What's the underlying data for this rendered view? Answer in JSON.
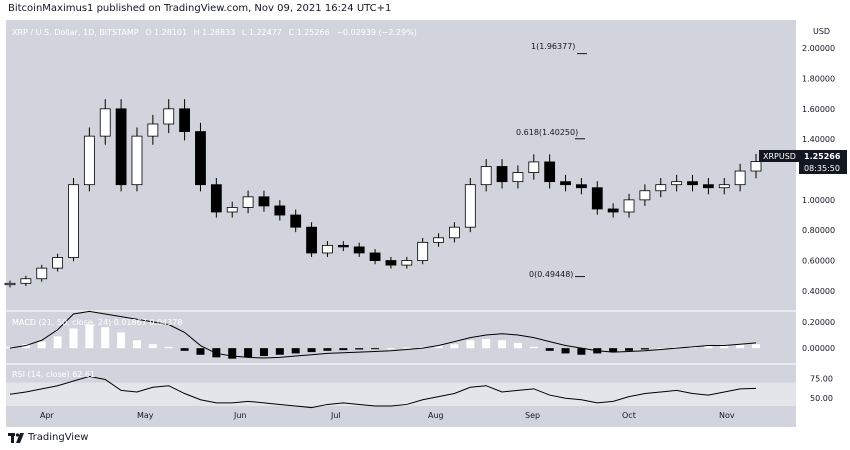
{
  "publish_line": "BitcoinMaximus1 published on TradingView.com, Nov 09, 2021 16:24 UTC+1",
  "header": {
    "symbol": "XRP / U.S. Dollar, 1D, BITSTAMP",
    "open": "O 1.28101",
    "high": "H 1.28833",
    "low": "L 1.22477",
    "close": "C 1.25266",
    "change": "−0.02939 (−2.29%)"
  },
  "currency": "USD",
  "price_tag": {
    "symbol": "XRPUSD",
    "price": "1.25266",
    "countdown": "08:35:50"
  },
  "fib_levels": [
    {
      "label": "1(1.96377)",
      "value": 1.96377
    },
    {
      "label": "0.618(1.40250)",
      "value": 1.4025
    },
    {
      "label": "0(0.49448)",
      "value": 0.49448
    }
  ],
  "macd_label": "MACD (21, 50, close, 24)  0.01867  0.04378",
  "rsi_label": "RSI (14, close)  62.61",
  "footer_brand": "TradingView",
  "colors": {
    "pane": "#d1d4dc",
    "candle": "#000000",
    "macd_pos": "#ffffff",
    "macd_neg": "#000000"
  },
  "chart_data": [
    {
      "type": "candlestick",
      "title": "XRP / U.S. Dollar, 1D, BITSTAMP",
      "xlabel": "",
      "ylabel": "USD",
      "x_ticks": [
        "Apr",
        "May",
        "Jun",
        "Jul",
        "Aug",
        "Sep",
        "Oct",
        "Nov"
      ],
      "y_ticks": [
        "2.00000",
        "1.80000",
        "1.60000",
        "1.40000",
        "1.20000",
        "1.00000",
        "0.80000",
        "0.60000",
        "0.40000"
      ],
      "ylim": [
        0.34,
        2.08
      ],
      "x": [
        "Mar 20",
        "Mar 25",
        "Mar 30",
        "Apr 4",
        "Apr 9",
        "Apr 14",
        "Apr 19",
        "Apr 24",
        "Apr 29",
        "May 4",
        "May 9",
        "May 14",
        "May 19",
        "May 24",
        "May 29",
        "Jun 3",
        "Jun 8",
        "Jun 13",
        "Jun 18",
        "Jun 23",
        "Jun 28",
        "Jul 3",
        "Jul 8",
        "Jul 13",
        "Jul 18",
        "Jul 23",
        "Jul 28",
        "Aug 2",
        "Aug 7",
        "Aug 12",
        "Aug 17",
        "Aug 22",
        "Aug 27",
        "Sep 1",
        "Sep 6",
        "Sep 11",
        "Sep 16",
        "Sep 21",
        "Sep 26",
        "Oct 1",
        "Oct 6",
        "Oct 11",
        "Oct 16",
        "Oct 21",
        "Oct 26",
        "Oct 31",
        "Nov 5",
        "Nov 9"
      ],
      "close": [
        0.45,
        0.48,
        0.55,
        0.62,
        1.1,
        1.42,
        1.6,
        1.1,
        1.42,
        1.5,
        1.6,
        1.45,
        1.1,
        0.92,
        0.95,
        1.02,
        0.96,
        0.9,
        0.82,
        0.65,
        0.7,
        0.69,
        0.65,
        0.6,
        0.57,
        0.6,
        0.72,
        0.75,
        0.82,
        1.1,
        1.22,
        1.12,
        1.18,
        1.25,
        1.12,
        1.1,
        1.08,
        0.94,
        0.92,
        1.0,
        1.06,
        1.1,
        1.12,
        1.1,
        1.08,
        1.1,
        1.19,
        1.25266
      ]
    },
    {
      "type": "bar",
      "title": "MACD (21, 50, close, 24)",
      "y_ticks": [
        "0.20000",
        "0.00000"
      ],
      "ylim": [
        -0.09,
        0.26
      ],
      "values": [
        0.01,
        0.03,
        0.05,
        0.09,
        0.15,
        0.18,
        0.16,
        0.12,
        0.06,
        0.03,
        0.01,
        -0.02,
        -0.05,
        -0.07,
        -0.08,
        -0.07,
        -0.06,
        -0.05,
        -0.04,
        -0.03,
        -0.02,
        -0.015,
        -0.01,
        -0.005,
        0.0,
        0.005,
        0.01,
        0.02,
        0.03,
        0.06,
        0.07,
        0.06,
        0.04,
        0.01,
        -0.02,
        -0.04,
        -0.05,
        -0.04,
        -0.03,
        -0.02,
        -0.01,
        0.0,
        0.01,
        0.015,
        0.02,
        0.025,
        0.03,
        0.03
      ],
      "macd_line": [
        0.0,
        0.02,
        0.06,
        0.14,
        0.26,
        0.28,
        0.26,
        0.24,
        0.22,
        0.2,
        0.18,
        0.12,
        0.02,
        -0.04,
        -0.06,
        -0.07,
        -0.075,
        -0.07,
        -0.06,
        -0.05,
        -0.04,
        -0.035,
        -0.03,
        -0.025,
        -0.02,
        -0.01,
        0.0,
        0.02,
        0.05,
        0.08,
        0.1,
        0.11,
        0.1,
        0.08,
        0.05,
        0.02,
        0.0,
        -0.02,
        -0.03,
        -0.025,
        -0.02,
        -0.01,
        0.0,
        0.01,
        0.02,
        0.02,
        0.03,
        0.04
      ]
    },
    {
      "type": "line",
      "title": "RSI (14, close)",
      "y_ticks": [
        "75.00",
        "50.00"
      ],
      "ylim": [
        40,
        90
      ],
      "series": [
        {
          "values": [
            55,
            58,
            62,
            66,
            72,
            78,
            74,
            60,
            58,
            64,
            66,
            56,
            48,
            44,
            44,
            46,
            44,
            42,
            40,
            38,
            42,
            44,
            42,
            40,
            40,
            42,
            48,
            52,
            56,
            64,
            66,
            58,
            60,
            62,
            54,
            50,
            48,
            44,
            46,
            52,
            56,
            58,
            60,
            56,
            54,
            58,
            62,
            62.61
          ]
        }
      ]
    }
  ]
}
